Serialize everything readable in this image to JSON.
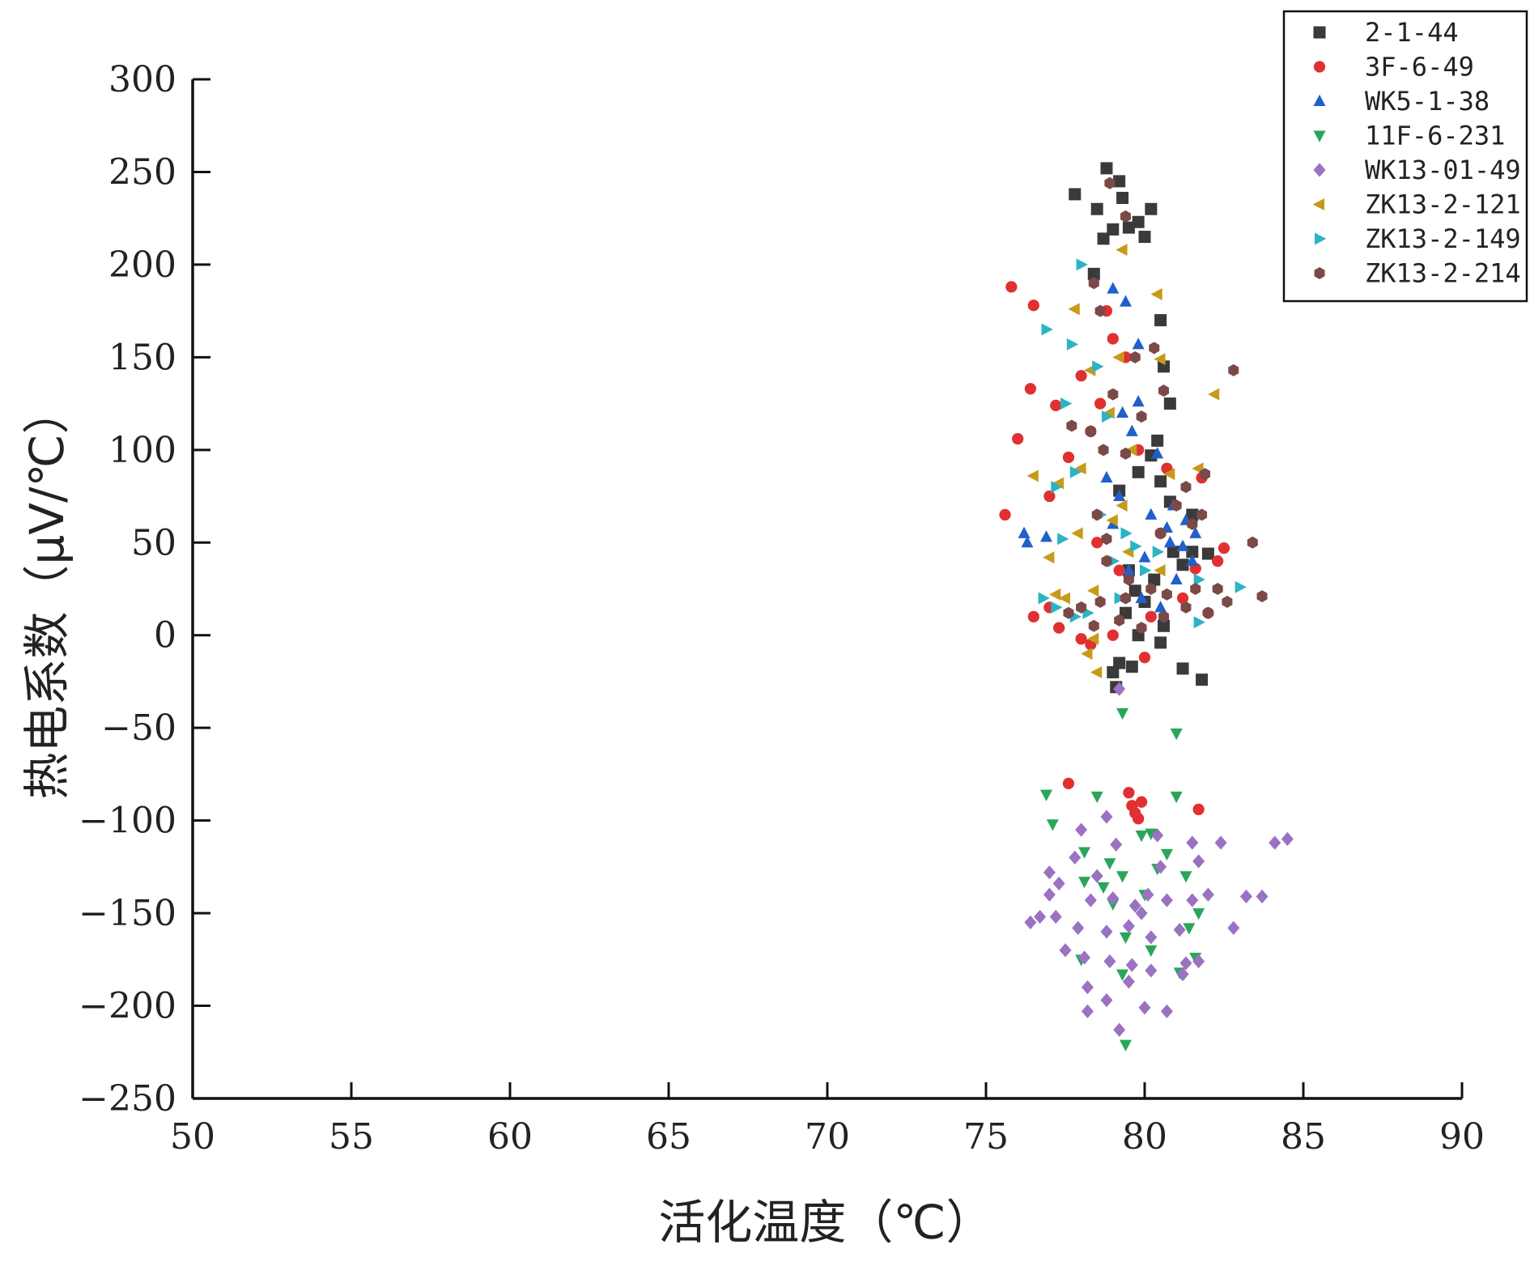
{
  "chart_data": {
    "type": "scatter",
    "xlabel": "活化温度（℃）",
    "ylabel": "热电系数（μV/℃）",
    "xlim": [
      50,
      90
    ],
    "ylim": [
      -250,
      300
    ],
    "xticks": [
      50,
      55,
      60,
      65,
      70,
      75,
      80,
      85,
      90
    ],
    "yticks": [
      300,
      250,
      200,
      150,
      100,
      50,
      0,
      -50,
      -100,
      -150,
      -200,
      -250
    ],
    "legend_position": "top-right",
    "grid": false,
    "series": [
      {
        "name": "2-1-44",
        "marker": "square",
        "color": "#3a3a3a",
        "points": [
          [
            78.8,
            252
          ],
          [
            79.2,
            245
          ],
          [
            77.8,
            238
          ],
          [
            79.3,
            236
          ],
          [
            79.8,
            223
          ],
          [
            80.2,
            230
          ],
          [
            78.5,
            230
          ],
          [
            79.5,
            220
          ],
          [
            80.0,
            215
          ],
          [
            78.7,
            214
          ],
          [
            79.0,
            219
          ],
          [
            80.5,
            170
          ],
          [
            80.6,
            145
          ],
          [
            80.8,
            125
          ],
          [
            80.4,
            105
          ],
          [
            80.2,
            97
          ],
          [
            79.8,
            88
          ],
          [
            80.5,
            83
          ],
          [
            79.2,
            78
          ],
          [
            80.8,
            72
          ],
          [
            81.5,
            65
          ],
          [
            80.9,
            45
          ],
          [
            81.5,
            45
          ],
          [
            82.0,
            44
          ],
          [
            81.2,
            38
          ],
          [
            79.5,
            35
          ],
          [
            80.3,
            30
          ],
          [
            79.7,
            24
          ],
          [
            80.0,
            18
          ],
          [
            79.4,
            12
          ],
          [
            80.6,
            5
          ],
          [
            79.8,
            0
          ],
          [
            80.5,
            -4
          ],
          [
            79.2,
            -15
          ],
          [
            79.6,
            -17
          ],
          [
            79.0,
            -20
          ],
          [
            79.1,
            -28
          ],
          [
            81.2,
            -18
          ],
          [
            81.8,
            -24
          ],
          [
            78.4,
            195
          ]
        ]
      },
      {
        "name": "3F-6-49",
        "marker": "circle",
        "color": "#e03030",
        "points": [
          [
            75.8,
            188
          ],
          [
            76.5,
            178
          ],
          [
            76.4,
            133
          ],
          [
            77.2,
            124
          ],
          [
            76.0,
            106
          ],
          [
            77.6,
            96
          ],
          [
            75.6,
            65
          ],
          [
            77.0,
            75
          ],
          [
            78.3,
            110
          ],
          [
            79.0,
            160
          ],
          [
            79.4,
            150
          ],
          [
            78.6,
            125
          ],
          [
            78.0,
            140
          ],
          [
            79.8,
            100
          ],
          [
            80.7,
            90
          ],
          [
            81.8,
            85
          ],
          [
            82.5,
            47
          ],
          [
            82.3,
            40
          ],
          [
            81.6,
            36
          ],
          [
            82.0,
            12
          ],
          [
            81.2,
            20
          ],
          [
            80.2,
            10
          ],
          [
            77.0,
            15
          ],
          [
            76.5,
            10
          ],
          [
            77.3,
            4
          ],
          [
            78.0,
            -2
          ],
          [
            78.3,
            -5
          ],
          [
            79.0,
            0
          ],
          [
            80.0,
            -12
          ],
          [
            77.6,
            -80
          ],
          [
            79.5,
            -85
          ],
          [
            79.6,
            -92
          ],
          [
            79.9,
            -90
          ],
          [
            79.8,
            -99
          ],
          [
            79.7,
            -96
          ],
          [
            81.7,
            -94
          ],
          [
            78.5,
            50
          ],
          [
            79.2,
            35
          ],
          [
            80.5,
            55
          ],
          [
            78.8,
            175
          ]
        ]
      },
      {
        "name": "WK5-1-38",
        "marker": "triangle-up",
        "color": "#2060c8",
        "points": [
          [
            76.2,
            55
          ],
          [
            76.3,
            50
          ],
          [
            76.9,
            53
          ],
          [
            79.0,
            187
          ],
          [
            79.4,
            180
          ],
          [
            79.8,
            157
          ],
          [
            79.8,
            126
          ],
          [
            79.3,
            120
          ],
          [
            79.6,
            110
          ],
          [
            80.4,
            98
          ],
          [
            80.9,
            70
          ],
          [
            81.3,
            62
          ],
          [
            81.6,
            55
          ],
          [
            80.8,
            50
          ],
          [
            80.0,
            42
          ],
          [
            79.5,
            35
          ],
          [
            81.5,
            40
          ],
          [
            81.0,
            30
          ],
          [
            79.2,
            75
          ],
          [
            78.8,
            85
          ],
          [
            80.2,
            65
          ],
          [
            79.9,
            20
          ],
          [
            80.5,
            15
          ],
          [
            79.0,
            60
          ],
          [
            80.7,
            58
          ],
          [
            81.2,
            48
          ]
        ]
      },
      {
        "name": "11F-6-231",
        "marker": "triangle-down",
        "color": "#2aa65a",
        "points": [
          [
            79.3,
            -42
          ],
          [
            81.0,
            -53
          ],
          [
            76.9,
            -86
          ],
          [
            78.5,
            -87
          ],
          [
            81.0,
            -87
          ],
          [
            77.1,
            -102
          ],
          [
            79.9,
            -108
          ],
          [
            80.2,
            -107
          ],
          [
            78.1,
            -117
          ],
          [
            78.9,
            -123
          ],
          [
            79.3,
            -130
          ],
          [
            80.4,
            -126
          ],
          [
            81.3,
            -130
          ],
          [
            78.7,
            -136
          ],
          [
            78.1,
            -133
          ],
          [
            80.0,
            -140
          ],
          [
            81.7,
            -150
          ],
          [
            81.4,
            -158
          ],
          [
            79.4,
            -163
          ],
          [
            80.2,
            -170
          ],
          [
            78.0,
            -175
          ],
          [
            81.6,
            -174
          ],
          [
            81.1,
            -182
          ],
          [
            79.3,
            -183
          ],
          [
            79.4,
            -221
          ],
          [
            79.0,
            -145
          ],
          [
            80.7,
            -118
          ]
        ]
      },
      {
        "name": "WK13-01-49",
        "marker": "diamond",
        "color": "#9b72c2",
        "points": [
          [
            79.2,
            -29
          ],
          [
            78.0,
            -105
          ],
          [
            78.8,
            -98
          ],
          [
            77.8,
            -120
          ],
          [
            79.1,
            -113
          ],
          [
            80.4,
            -108
          ],
          [
            81.5,
            -112
          ],
          [
            81.7,
            -122
          ],
          [
            82.4,
            -112
          ],
          [
            84.1,
            -112
          ],
          [
            84.5,
            -110
          ],
          [
            77.0,
            -128
          ],
          [
            77.3,
            -134
          ],
          [
            77.0,
            -140
          ],
          [
            78.3,
            -143
          ],
          [
            79.0,
            -142
          ],
          [
            79.7,
            -146
          ],
          [
            80.1,
            -140
          ],
          [
            80.7,
            -143
          ],
          [
            81.5,
            -143
          ],
          [
            82.0,
            -140
          ],
          [
            83.2,
            -141
          ],
          [
            83.7,
            -141
          ],
          [
            76.4,
            -155
          ],
          [
            76.7,
            -152
          ],
          [
            77.2,
            -152
          ],
          [
            77.9,
            -158
          ],
          [
            78.8,
            -160
          ],
          [
            79.5,
            -157
          ],
          [
            80.2,
            -163
          ],
          [
            81.1,
            -159
          ],
          [
            82.8,
            -158
          ],
          [
            77.5,
            -170
          ],
          [
            78.1,
            -174
          ],
          [
            78.9,
            -176
          ],
          [
            79.6,
            -178
          ],
          [
            80.2,
            -181
          ],
          [
            81.3,
            -177
          ],
          [
            81.7,
            -176
          ],
          [
            78.2,
            -190
          ],
          [
            78.8,
            -197
          ],
          [
            79.5,
            -187
          ],
          [
            80.0,
            -201
          ],
          [
            80.7,
            -203
          ],
          [
            78.2,
            -203
          ],
          [
            79.2,
            -213
          ],
          [
            81.2,
            -183
          ],
          [
            79.9,
            -150
          ],
          [
            78.5,
            -130
          ],
          [
            80.5,
            -125
          ]
        ]
      },
      {
        "name": "ZK13-2-121",
        "marker": "triangle-left",
        "color": "#c89a1a",
        "points": [
          [
            79.3,
            208
          ],
          [
            80.4,
            184
          ],
          [
            77.8,
            176
          ],
          [
            79.2,
            150
          ],
          [
            78.3,
            143
          ],
          [
            80.5,
            149
          ],
          [
            78.9,
            120
          ],
          [
            79.6,
            100
          ],
          [
            78.0,
            90
          ],
          [
            76.5,
            86
          ],
          [
            77.3,
            82
          ],
          [
            77.0,
            42
          ],
          [
            82.2,
            130
          ],
          [
            80.8,
            87
          ],
          [
            81.7,
            90
          ],
          [
            77.2,
            22
          ],
          [
            77.5,
            20
          ],
          [
            78.4,
            24
          ],
          [
            79.0,
            62
          ],
          [
            79.3,
            70
          ],
          [
            78.2,
            -10
          ],
          [
            78.5,
            -20
          ],
          [
            78.4,
            -2
          ],
          [
            77.9,
            55
          ],
          [
            79.5,
            45
          ],
          [
            80.5,
            35
          ]
        ]
      },
      {
        "name": "ZK13-2-149",
        "marker": "triangle-right",
        "color": "#2bb4c4",
        "points": [
          [
            78.0,
            200
          ],
          [
            76.9,
            165
          ],
          [
            77.7,
            157
          ],
          [
            78.5,
            145
          ],
          [
            77.5,
            125
          ],
          [
            78.8,
            118
          ],
          [
            77.8,
            88
          ],
          [
            77.2,
            80
          ],
          [
            78.6,
            65
          ],
          [
            79.4,
            55
          ],
          [
            79.7,
            48
          ],
          [
            79.0,
            40
          ],
          [
            80.0,
            35
          ],
          [
            81.7,
            30
          ],
          [
            83.0,
            26
          ],
          [
            76.8,
            20
          ],
          [
            77.2,
            15
          ],
          [
            77.8,
            10
          ],
          [
            81.7,
            7
          ],
          [
            78.2,
            12
          ],
          [
            79.2,
            20
          ],
          [
            80.4,
            45
          ],
          [
            77.4,
            52
          ]
        ]
      },
      {
        "name": "ZK13-2-214",
        "marker": "hexagon",
        "color": "#7a4a48",
        "points": [
          [
            78.9,
            244
          ],
          [
            79.4,
            226
          ],
          [
            78.4,
            190
          ],
          [
            78.6,
            175
          ],
          [
            80.3,
            155
          ],
          [
            79.7,
            150
          ],
          [
            82.8,
            143
          ],
          [
            80.6,
            132
          ],
          [
            79.0,
            130
          ],
          [
            78.7,
            100
          ],
          [
            77.7,
            113
          ],
          [
            79.4,
            98
          ],
          [
            79.9,
            118
          ],
          [
            78.3,
            110
          ],
          [
            81.9,
            87
          ],
          [
            81.3,
            80
          ],
          [
            83.4,
            50
          ],
          [
            81.0,
            70
          ],
          [
            81.8,
            65
          ],
          [
            81.5,
            60
          ],
          [
            80.5,
            55
          ],
          [
            78.5,
            65
          ],
          [
            78.8,
            52
          ],
          [
            82.3,
            25
          ],
          [
            82.6,
            18
          ],
          [
            83.7,
            21
          ],
          [
            81.6,
            25
          ],
          [
            80.7,
            22
          ],
          [
            80.2,
            25
          ],
          [
            79.4,
            20
          ],
          [
            78.6,
            18
          ],
          [
            78.0,
            15
          ],
          [
            77.6,
            12
          ],
          [
            78.4,
            5
          ],
          [
            79.2,
            8
          ],
          [
            79.9,
            4
          ],
          [
            80.6,
            10
          ],
          [
            81.3,
            15
          ],
          [
            82.0,
            12
          ],
          [
            79.5,
            30
          ],
          [
            78.8,
            40
          ]
        ]
      }
    ]
  }
}
